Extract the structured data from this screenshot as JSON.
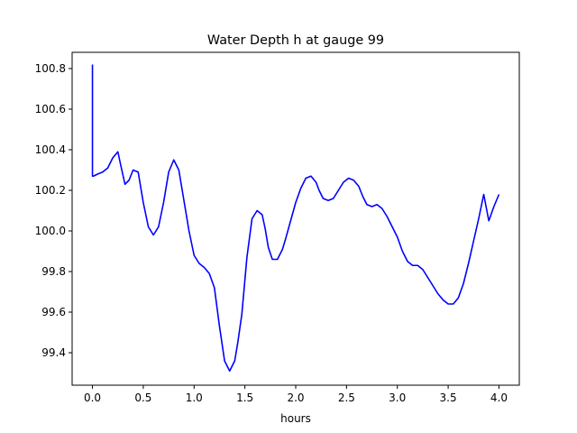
{
  "chart_data": {
    "type": "line",
    "title": "Water Depth h at gauge 99",
    "xlabel": "hours",
    "ylabel": "",
    "xlim": [
      -0.2,
      4.2
    ],
    "ylim": [
      99.24,
      100.88
    ],
    "grid": false,
    "xticks": [
      "0.0",
      "0.5",
      "1.0",
      "1.5",
      "2.0",
      "2.5",
      "3.0",
      "3.5",
      "4.0"
    ],
    "yticks": [
      "99.4",
      "99.6",
      "99.8",
      "100.0",
      "100.2",
      "100.4",
      "100.6",
      "100.8"
    ],
    "series": [
      {
        "color": "#0000ff",
        "x": [
          0.0,
          0.0,
          0.01,
          0.05,
          0.1,
          0.15,
          0.2,
          0.25,
          0.28,
          0.32,
          0.36,
          0.4,
          0.45,
          0.5,
          0.55,
          0.6,
          0.65,
          0.7,
          0.75,
          0.8,
          0.85,
          0.9,
          0.95,
          1.0,
          1.05,
          1.1,
          1.15,
          1.2,
          1.25,
          1.3,
          1.35,
          1.4,
          1.43,
          1.47,
          1.52,
          1.57,
          1.62,
          1.67,
          1.7,
          1.73,
          1.77,
          1.82,
          1.87,
          1.9,
          1.95,
          2.0,
          2.05,
          2.1,
          2.15,
          2.2,
          2.23,
          2.27,
          2.32,
          2.37,
          2.42,
          2.47,
          2.52,
          2.57,
          2.62,
          2.66,
          2.7,
          2.75,
          2.8,
          2.85,
          2.9,
          2.95,
          3.0,
          3.05,
          3.1,
          3.15,
          3.2,
          3.25,
          3.3,
          3.35,
          3.4,
          3.45,
          3.5,
          3.55,
          3.6,
          3.65,
          3.7,
          3.75,
          3.8,
          3.85,
          3.9,
          3.95,
          4.0
        ],
        "y": [
          100.82,
          100.27,
          100.27,
          100.28,
          100.29,
          100.31,
          100.36,
          100.39,
          100.32,
          100.23,
          100.25,
          100.3,
          100.29,
          100.14,
          100.02,
          99.98,
          100.02,
          100.14,
          100.29,
          100.35,
          100.3,
          100.15,
          100.0,
          99.88,
          99.84,
          99.82,
          99.79,
          99.72,
          99.53,
          99.36,
          99.31,
          99.36,
          99.45,
          99.59,
          99.87,
          100.06,
          100.1,
          100.08,
          100.01,
          99.92,
          99.86,
          99.86,
          99.91,
          99.96,
          100.05,
          100.14,
          100.21,
          100.26,
          100.27,
          100.24,
          100.2,
          100.16,
          100.15,
          100.16,
          100.2,
          100.24,
          100.26,
          100.25,
          100.22,
          100.17,
          100.13,
          100.12,
          100.13,
          100.11,
          100.07,
          100.02,
          99.97,
          99.9,
          99.85,
          99.83,
          99.83,
          99.81,
          99.77,
          99.73,
          99.69,
          99.66,
          99.64,
          99.64,
          99.67,
          99.74,
          99.84,
          99.95,
          100.06,
          100.18,
          100.05,
          100.12,
          100.18
        ]
      }
    ]
  }
}
